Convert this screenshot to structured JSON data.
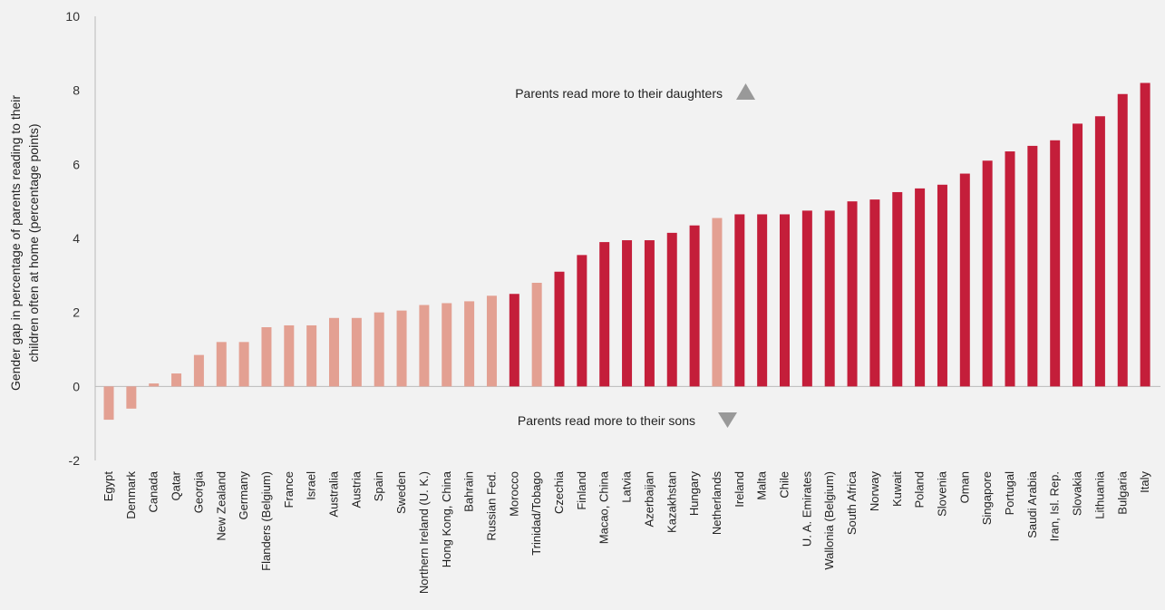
{
  "chart_data": {
    "type": "bar",
    "title": "",
    "xlabel": "",
    "ylabel_lines": [
      "Gender gap in percentage of parents reading to their",
      "children often at home (percentage points)"
    ],
    "ylim": [
      -2,
      10
    ],
    "yticks": [
      -2,
      0,
      2,
      4,
      6,
      8,
      10
    ],
    "grid": false,
    "colors": {
      "significant": "#c41e3a",
      "not_significant": "#e3a092",
      "axis": "#bbbbbb",
      "marker": "#999999",
      "background": "#f2f2f2"
    },
    "categories": [
      "Egypt",
      "Denmark",
      "Canada",
      "Qatar",
      "Georgia",
      "New Zealand",
      "Germany",
      "Flanders (Belgium)",
      "France",
      "Israel",
      "Australia",
      "Austria",
      "Spain",
      "Sweden",
      "Northern Ireland (U. K.)",
      "Hong Kong, China",
      "Bahrain",
      "Russian Fed.",
      "Morocco",
      "Trinidad/Tobago",
      "Czechia",
      "Finland",
      "Macao, China",
      "Latvia",
      "Azerbaijan",
      "Kazakhstan",
      "Hungary",
      "Netherlands",
      "Ireland",
      "Malta",
      "Chile",
      "U. A. Emirates",
      "Wallonia (Belgium)",
      "South Africa",
      "Norway",
      "Kuwait",
      "Poland",
      "Slovenia",
      "Oman",
      "Singapore",
      "Portugal",
      "Saudi Arabia",
      "Iran, Isl. Rep.",
      "Slovakia",
      "Lithuania",
      "Bulgaria",
      "Italy"
    ],
    "values": [
      -0.9,
      -0.6,
      0.08,
      0.35,
      0.85,
      1.2,
      1.2,
      1.6,
      1.65,
      1.65,
      1.85,
      1.85,
      2.0,
      2.05,
      2.2,
      2.25,
      2.3,
      2.45,
      2.5,
      2.8,
      3.1,
      3.55,
      3.9,
      3.95,
      3.95,
      4.15,
      4.35,
      4.55,
      4.65,
      4.65,
      4.65,
      4.75,
      4.75,
      5.0,
      5.05,
      5.25,
      5.35,
      5.45,
      5.75,
      6.1,
      6.35,
      6.5,
      6.65,
      7.1,
      7.3,
      7.9,
      8.2
    ],
    "significant": [
      false,
      false,
      false,
      false,
      false,
      false,
      false,
      false,
      false,
      false,
      false,
      false,
      false,
      false,
      false,
      false,
      false,
      false,
      true,
      false,
      true,
      true,
      true,
      true,
      true,
      true,
      true,
      false,
      true,
      true,
      true,
      true,
      true,
      true,
      true,
      true,
      true,
      true,
      true,
      true,
      true,
      true,
      true,
      true,
      true,
      true,
      true
    ],
    "annotations": {
      "daughters": {
        "text": "Parents read more to their daughters",
        "marker": "triangle-up"
      },
      "sons": {
        "text": "Parents read more to their sons",
        "marker": "triangle-down"
      }
    }
  }
}
